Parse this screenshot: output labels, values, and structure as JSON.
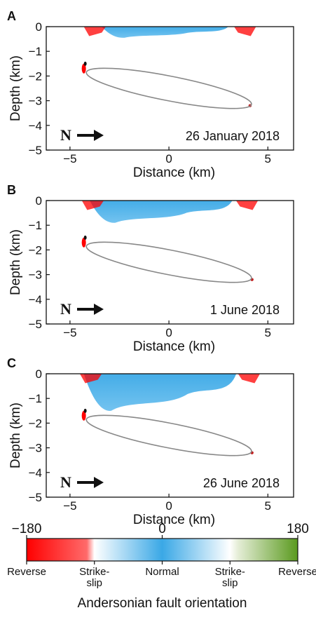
{
  "chart_data": [
    {
      "panel": "A",
      "type": "scatter",
      "date": "26 January 2018",
      "xlabel": "Distance (km)",
      "ylabel": "Depth (km)",
      "xlim": [
        -6.2,
        6.3
      ],
      "ylim": [
        -5,
        0
      ],
      "xticks": [
        -5,
        0,
        5
      ],
      "yticks": [
        0,
        -1,
        -2,
        -3,
        -4,
        -5
      ],
      "north_label": "N",
      "reservoir_ellipse": {
        "cx": 0.0,
        "cy": -2.5,
        "rx": 4.25,
        "ry": 0.5,
        "angle_deg": -11
      },
      "seismicity": {
        "shallow_normal": {
          "xmin": -3.4,
          "xmax": 3.0,
          "ymin": -0.45,
          "ymax": 0.0
        },
        "reverse_edges": [
          [
            -4.1,
            -0.1
          ],
          [
            4.2,
            -0.1
          ]
        ],
        "strike_slip_cluster": [
          -4.3,
          -1.7
        ],
        "east_cluster": [
          4.1,
          -3.2
        ]
      }
    },
    {
      "panel": "B",
      "type": "scatter",
      "date": "1 June 2018",
      "xlabel": "Distance (km)",
      "ylabel": "Depth (km)",
      "xlim": [
        -6.2,
        6.3
      ],
      "ylim": [
        -5,
        0
      ],
      "xticks": [
        -5,
        0,
        5
      ],
      "yticks": [
        0,
        -1,
        -2,
        -3,
        -4,
        -5
      ],
      "north_label": "N",
      "reservoir_ellipse": {
        "cx": 0.0,
        "cy": -2.5,
        "rx": 4.25,
        "ry": 0.5,
        "angle_deg": -11
      },
      "seismicity": {
        "shallow_normal": {
          "xmin": -4.0,
          "xmax": 3.2,
          "ymin": -0.9,
          "ymax": 0.0
        },
        "reverse_edges": [
          [
            -4.2,
            -0.1
          ],
          [
            4.3,
            -0.1
          ]
        ],
        "strike_slip_cluster": [
          -4.3,
          -1.7
        ],
        "east_cluster": [
          4.2,
          -3.2
        ]
      }
    },
    {
      "panel": "C",
      "type": "scatter",
      "date": "26 June 2018",
      "xlabel": "Distance (km)",
      "ylabel": "Depth (km)",
      "xlim": [
        -6.2,
        6.3
      ],
      "ylim": [
        -5,
        0
      ],
      "xticks": [
        -5,
        0,
        5
      ],
      "yticks": [
        0,
        -1,
        -2,
        -3,
        -4,
        -5
      ],
      "north_label": "N",
      "reservoir_ellipse": {
        "cx": 0.0,
        "cy": -2.5,
        "rx": 4.25,
        "ry": 0.5,
        "angle_deg": -11
      },
      "seismicity": {
        "shallow_normal": {
          "xmin": -4.3,
          "xmax": 3.4,
          "ymin": -1.5,
          "ymax": 0.0
        },
        "reverse_edges": [
          [
            -4.3,
            -0.1
          ],
          [
            4.4,
            -0.1
          ]
        ],
        "strike_slip_cluster": [
          -4.3,
          -1.7
        ],
        "east_cluster": [
          4.2,
          -3.2
        ]
      }
    }
  ],
  "colorbar": {
    "ticks": [
      {
        "value": -180,
        "label": "−180"
      },
      {
        "value": 0,
        "label": "0"
      },
      {
        "value": 180,
        "label": "180"
      }
    ],
    "range": [
      -180,
      180
    ],
    "stops": [
      {
        "value": -180,
        "color": "#ff0000"
      },
      {
        "value": -100,
        "color": "#ff6a6a"
      },
      {
        "value": -90,
        "color": "#ffffff"
      },
      {
        "value": 0,
        "color": "#3aa8e6"
      },
      {
        "value": 90,
        "color": "#ffffff"
      },
      {
        "value": 100,
        "color": "#e6eed8"
      },
      {
        "value": 180,
        "color": "#5a9a1e"
      }
    ],
    "categories": [
      {
        "label": "Reverse",
        "value": -180
      },
      {
        "label": "Strike-\nslip",
        "value": -90
      },
      {
        "label": "Normal",
        "value": 0
      },
      {
        "label": "Strike-\nslip",
        "value": 90
      },
      {
        "label": "Reverse",
        "value": 180
      }
    ],
    "title": "Andersonian fault orientation"
  },
  "colors": {
    "normal": "#3aa8e6",
    "reverse": "#ff0000",
    "ellipse": "#888888",
    "axis": "#111111"
  }
}
